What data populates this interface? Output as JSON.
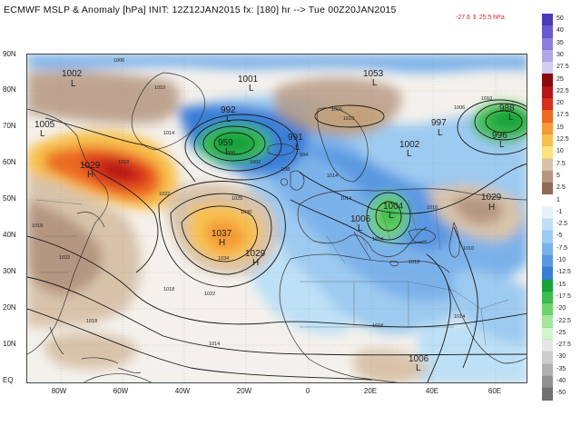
{
  "title": "ECMWF MSLP & Anomaly [hPa] INIT: 12Z12JAN2015 fx: [180] hr --> Tue 00Z20JAN2015",
  "minmax": "-27.6 ⇕ 25.5 hPa",
  "y_axis": [
    "90N",
    "80N",
    "70N",
    "60N",
    "50N",
    "40N",
    "30N",
    "20N",
    "10N",
    "EQ"
  ],
  "x_axis": [
    "80W",
    "60W",
    "40W",
    "20W",
    "0",
    "20E",
    "40E",
    "60E"
  ],
  "colorbar": {
    "labels": [
      "50",
      "40",
      "35",
      "30",
      "27.5",
      "25",
      "22.5",
      "20",
      "17.5",
      "15",
      "12.5",
      "10",
      "7.5",
      "5",
      "2.5",
      "1",
      "-1",
      "-2.5",
      "-5",
      "-7.5",
      "-10",
      "-12.5",
      "-15",
      "-17.5",
      "-20",
      "-22.5",
      "-25",
      "-27.5",
      "-30",
      "-35",
      "-40",
      "-50"
    ],
    "colors": [
      "#4a3bb8",
      "#6a5ad0",
      "#8c80dc",
      "#b0a8e6",
      "#d2cdf0",
      "#8a0a0a",
      "#b51616",
      "#d8301e",
      "#ee6a22",
      "#f59a38",
      "#f8c14e",
      "#fbe280",
      "#d8c3aa",
      "#b59680",
      "#8f6a55",
      "#ffffff",
      "#e6f2fb",
      "#bde0f6",
      "#9dcaf0",
      "#7bb2ea",
      "#5a98e2",
      "#3b7ed8",
      "#17a33c",
      "#3cbd4e",
      "#6ed36c",
      "#a4e69e",
      "#d2f5cc",
      "#e6e6e6",
      "#cccccc",
      "#b0b0b0",
      "#909090",
      "#707070"
    ]
  },
  "lows": [
    {
      "v": "1002",
      "l": "L"
    },
    {
      "v": "1001",
      "l": "L"
    },
    {
      "v": "1053",
      "l": "L"
    },
    {
      "v": "988",
      "l": "L"
    },
    {
      "v": "1005",
      "l": "L"
    },
    {
      "v": "959",
      "l": "L"
    },
    {
      "v": "991",
      "l": "L"
    },
    {
      "v": "997",
      "l": "L"
    },
    {
      "v": "996",
      "l": "L"
    },
    {
      "v": "1002",
      "l": "L"
    },
    {
      "v": "1006",
      "l": "L"
    },
    {
      "v": "1004",
      "l": "L"
    },
    {
      "v": "1006",
      "l": "L"
    },
    {
      "v": "992",
      "l": "L"
    }
  ],
  "highs": [
    {
      "v": "1029",
      "l": "H"
    },
    {
      "v": "1037",
      "l": "H"
    },
    {
      "v": "1029",
      "l": "H"
    },
    {
      "v": "1029",
      "l": "H"
    }
  ],
  "isobar_labels": [
    "1006",
    "1010",
    "1014",
    "1018",
    "1022",
    "1026",
    "1030",
    "1034",
    "1006",
    "1010",
    "1014",
    "1018",
    "1022",
    "1018",
    "1014",
    "1010",
    "1006",
    "1002",
    "998",
    "994",
    "990",
    "1014",
    "1018",
    "1022",
    "1010",
    "1014",
    "1018",
    "1018",
    "1014",
    "1010"
  ]
}
